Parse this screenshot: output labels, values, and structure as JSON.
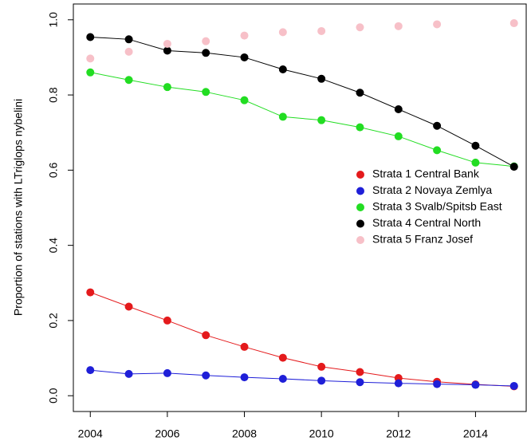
{
  "chart_data": {
    "type": "line",
    "ylabel": "Proportion of stations with LTriglops nybelini",
    "x": [
      2004,
      2005,
      2006,
      2007,
      2008,
      2009,
      2010,
      2011,
      2012,
      2013,
      2014,
      2015
    ],
    "xlim": [
      2003.56,
      2015.44
    ],
    "xticks": [
      2004,
      2006,
      2008,
      2010,
      2012,
      2014
    ],
    "ylim": [
      -0.042,
      1.042
    ],
    "yticks": [
      {
        "value": 0,
        "label": "0.0"
      },
      {
        "value": 0.2,
        "label": "0.2"
      },
      {
        "value": 0.4,
        "label": "0.4"
      },
      {
        "value": 0.6,
        "label": "0.6"
      },
      {
        "value": 0.8,
        "label": "0.8"
      },
      {
        "value": 1,
        "label": "1.0"
      }
    ],
    "legend": "right",
    "series": [
      {
        "name": "Strata 1 Central Bank",
        "color": "#e41a1c",
        "lines": true,
        "values": [
          0.275,
          0.237,
          0.2,
          0.161,
          0.13,
          0.101,
          0.077,
          0.063,
          0.047,
          0.037,
          0.03,
          0.025
        ]
      },
      {
        "name": "Strata 2 Novaya Zemlya",
        "color": "#1f1fd8",
        "lines": true,
        "values": [
          0.068,
          0.058,
          0.06,
          0.054,
          0.049,
          0.045,
          0.04,
          0.036,
          0.033,
          0.031,
          0.029,
          0.026
        ]
      },
      {
        "name": "Strata 3 Svalb/Spitsb East",
        "color": "#22dd22",
        "lines": true,
        "values": [
          0.86,
          0.84,
          0.821,
          0.808,
          0.786,
          0.742,
          0.733,
          0.714,
          0.69,
          0.653,
          0.62,
          0.61
        ]
      },
      {
        "name": "Strata 4 Central North",
        "color": "#000000",
        "lines": true,
        "values": [
          0.954,
          0.948,
          0.918,
          0.912,
          0.9,
          0.868,
          0.843,
          0.806,
          0.762,
          0.718,
          0.665,
          0.609
        ]
      },
      {
        "name": "Strata 5 Franz Josef",
        "color": "#f7c0c8",
        "lines": false,
        "values": [
          0.897,
          0.915,
          0.936,
          0.943,
          0.958,
          0.967,
          0.97,
          0.98,
          0.983,
          0.988,
          null,
          0.991
        ]
      }
    ]
  }
}
